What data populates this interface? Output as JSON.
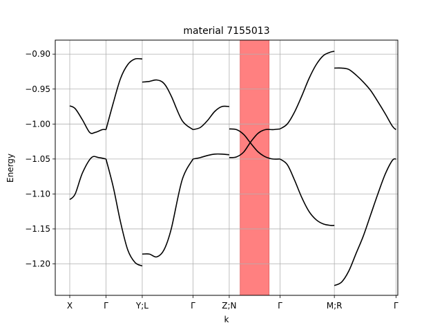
{
  "chart_data": {
    "type": "line",
    "title": "material 7155013",
    "xlabel": "k",
    "ylabel": "Energy",
    "xlim": [
      0,
      9.45
    ],
    "ylim": [
      -1.245,
      -0.88
    ],
    "grid": true,
    "legend": "none",
    "x_ticks": [
      {
        "x": 0.4,
        "label": "X"
      },
      {
        "x": 1.4,
        "label": "Γ"
      },
      {
        "x": 2.4,
        "label": "Y;L"
      },
      {
        "x": 3.8,
        "label": "Γ"
      },
      {
        "x": 4.8,
        "label": "Z;N"
      },
      {
        "x": 6.2,
        "label": "Γ"
      },
      {
        "x": 7.7,
        "label": "M;R"
      },
      {
        "x": 9.4,
        "label": "Γ"
      }
    ],
    "y_ticks": [
      -0.9,
      -0.95,
      -1.0,
      -1.05,
      -1.1,
      -1.15,
      -1.2
    ],
    "y_tick_labels": [
      "−0.90",
      "−0.95",
      "−1.00",
      "−1.05",
      "−1.10",
      "−1.15",
      "−1.20"
    ],
    "highlight_band": {
      "x0": 5.1,
      "x1": 5.9,
      "color": "#ff8080"
    },
    "line_color": "#000000",
    "series": [
      {
        "x": [
          0.4,
          0.55,
          0.75,
          0.95,
          1.1,
          1.3,
          1.4
        ],
        "y": [
          -0.974,
          -0.978,
          -0.994,
          -1.012,
          -1.012,
          -1.008,
          -1.008
        ]
      },
      {
        "x": [
          1.4,
          1.6,
          1.8,
          2.0,
          2.2,
          2.4
        ],
        "y": [
          -1.008,
          -0.97,
          -0.935,
          -0.915,
          -0.907,
          -0.907
        ]
      },
      {
        "x": [
          0.4,
          0.55,
          0.75,
          1.0,
          1.2,
          1.4
        ],
        "y": [
          -1.108,
          -1.1,
          -1.07,
          -1.048,
          -1.048,
          -1.05
        ]
      },
      {
        "x": [
          1.4,
          1.6,
          1.8,
          2.0,
          2.2,
          2.4
        ],
        "y": [
          -1.05,
          -1.09,
          -1.14,
          -1.18,
          -1.198,
          -1.203
        ]
      },
      {
        "x": [
          2.4,
          2.6,
          2.8,
          3.0,
          3.2,
          3.5,
          3.8
        ],
        "y": [
          -0.94,
          -0.939,
          -0.937,
          -0.942,
          -0.96,
          -0.995,
          -1.008
        ]
      },
      {
        "x": [
          3.8,
          4.0,
          4.2,
          4.4,
          4.6,
          4.8
        ],
        "y": [
          -1.008,
          -1.005,
          -0.995,
          -0.982,
          -0.975,
          -0.975
        ]
      },
      {
        "x": [
          2.4,
          2.6,
          2.8,
          3.0,
          3.2,
          3.5,
          3.8
        ],
        "y": [
          -1.186,
          -1.186,
          -1.19,
          -1.18,
          -1.15,
          -1.08,
          -1.05
        ]
      },
      {
        "x": [
          3.8,
          4.0,
          4.2,
          4.4,
          4.6,
          4.8
        ],
        "y": [
          -1.05,
          -1.048,
          -1.045,
          -1.043,
          -1.043,
          -1.044
        ]
      },
      {
        "x": [
          4.8,
          5.0,
          5.2,
          5.4,
          5.6,
          5.8,
          6.0,
          6.2
        ],
        "y": [
          -1.007,
          -1.008,
          -1.015,
          -1.028,
          -1.04,
          -1.047,
          -1.05,
          -1.05
        ]
      },
      {
        "x": [
          4.8,
          5.0,
          5.2,
          5.4,
          5.6,
          5.8,
          6.0,
          6.2
        ],
        "y": [
          -1.048,
          -1.047,
          -1.04,
          -1.025,
          -1.013,
          -1.008,
          -1.008,
          -1.007
        ]
      },
      {
        "x": [
          6.2,
          6.4,
          6.6,
          6.8,
          7.0,
          7.2,
          7.4,
          7.6,
          7.7
        ],
        "y": [
          -1.007,
          -1.0,
          -0.983,
          -0.96,
          -0.935,
          -0.915,
          -0.902,
          -0.897,
          -0.896
        ]
      },
      {
        "x": [
          6.2,
          6.4,
          6.6,
          6.8,
          7.0,
          7.2,
          7.4,
          7.6,
          7.7
        ],
        "y": [
          -1.05,
          -1.058,
          -1.08,
          -1.105,
          -1.125,
          -1.137,
          -1.143,
          -1.145,
          -1.145
        ]
      },
      {
        "x": [
          7.7,
          7.9,
          8.1,
          8.3,
          8.5,
          8.7,
          8.9,
          9.1,
          9.3,
          9.4
        ],
        "y": [
          -0.92,
          -0.92,
          -0.922,
          -0.93,
          -0.94,
          -0.952,
          -0.968,
          -0.985,
          -1.003,
          -1.008
        ]
      },
      {
        "x": [
          7.7,
          7.9,
          8.1,
          8.3,
          8.5,
          8.7,
          8.9,
          9.1,
          9.3,
          9.4
        ],
        "y": [
          -1.231,
          -1.226,
          -1.21,
          -1.185,
          -1.16,
          -1.13,
          -1.1,
          -1.072,
          -1.052,
          -1.05
        ]
      }
    ]
  }
}
